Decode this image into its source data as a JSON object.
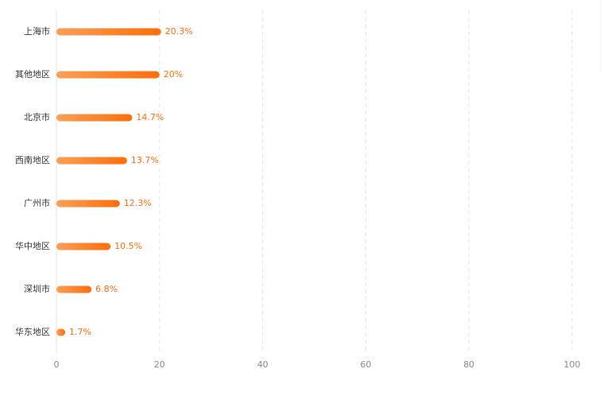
{
  "chart_data": {
    "type": "hbar",
    "categories": [
      "上海市",
      "其他地区",
      "北京市",
      "西南地区",
      "广州市",
      "华中地区",
      "深圳市",
      "华东地区"
    ],
    "values": [
      20.3,
      20,
      14.7,
      13.7,
      12.3,
      10.5,
      6.8,
      1.7
    ],
    "value_labels": [
      "20.3%",
      "20%",
      "14.7%",
      "13.7%",
      "12.3%",
      "10.5%",
      "6.8%",
      "1.7%"
    ],
    "color": "#ff6d0a",
    "xlim": [
      0,
      100
    ],
    "xticks": [
      0,
      20,
      40,
      60,
      80,
      100
    ],
    "grid": true
  }
}
